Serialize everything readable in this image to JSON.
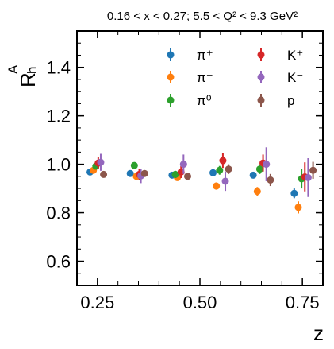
{
  "chart_data": {
    "type": "scatter",
    "title": "0.16 < x < 0.27;  5.5 < Q² < 9.3 GeV²",
    "xlabel": "z",
    "ylabel_main": "R",
    "ylabel_sup": "A",
    "ylabel_sub": "h",
    "xlim": [
      0.2,
      0.8
    ],
    "ylim": [
      0.5,
      1.55
    ],
    "xticks": [
      0.25,
      0.5,
      0.75
    ],
    "xtick_labels": [
      "0.25",
      "0.50",
      "0.75"
    ],
    "yticks": [
      0.6,
      0.8,
      1.0,
      1.2,
      1.4
    ],
    "ytick_labels": [
      "0.6",
      "0.8",
      "1.0",
      "1.2",
      "1.4"
    ],
    "grid": false,
    "legend_position": "top-right",
    "series": [
      {
        "name": "π⁺",
        "color": "#1f77b4",
        "points": [
          {
            "x": 0.232,
            "y": 0.968,
            "err": 0.01
          },
          {
            "x": 0.33,
            "y": 0.962,
            "err": 0.01
          },
          {
            "x": 0.432,
            "y": 0.955,
            "err": 0.01
          },
          {
            "x": 0.532,
            "y": 0.965,
            "err": 0.012
          },
          {
            "x": 0.63,
            "y": 0.955,
            "err": 0.012
          },
          {
            "x": 0.73,
            "y": 0.88,
            "err": 0.02
          }
        ]
      },
      {
        "name": "π⁻",
        "color": "#ff7f0e",
        "points": [
          {
            "x": 0.24,
            "y": 0.975,
            "err": 0.01
          },
          {
            "x": 0.345,
            "y": 0.95,
            "err": 0.01
          },
          {
            "x": 0.445,
            "y": 0.945,
            "err": 0.012
          },
          {
            "x": 0.54,
            "y": 0.91,
            "err": 0.015
          },
          {
            "x": 0.64,
            "y": 0.888,
            "err": 0.018
          },
          {
            "x": 0.74,
            "y": 0.822,
            "err": 0.025
          }
        ]
      },
      {
        "name": "π⁰",
        "color": "#2ca02c",
        "points": [
          {
            "x": 0.246,
            "y": 0.992,
            "err": 0.012
          },
          {
            "x": 0.34,
            "y": 0.995,
            "err": 0.012
          },
          {
            "x": 0.44,
            "y": 0.958,
            "err": 0.015
          },
          {
            "x": 0.548,
            "y": 0.975,
            "err": 0.018
          },
          {
            "x": 0.646,
            "y": 0.98,
            "err": 0.02
          },
          {
            "x": 0.748,
            "y": 0.94,
            "err": 0.04
          }
        ]
      },
      {
        "name": "K⁺",
        "color": "#d62728",
        "points": [
          {
            "x": 0.252,
            "y": 1.005,
            "err": 0.025
          },
          {
            "x": 0.352,
            "y": 0.958,
            "err": 0.022
          },
          {
            "x": 0.454,
            "y": 0.968,
            "err": 0.025
          },
          {
            "x": 0.556,
            "y": 1.015,
            "err": 0.03
          },
          {
            "x": 0.654,
            "y": 1.005,
            "err": 0.035
          },
          {
            "x": 0.756,
            "y": 0.948,
            "err": 0.06
          }
        ]
      },
      {
        "name": "K⁻",
        "color": "#9467bd",
        "points": [
          {
            "x": 0.258,
            "y": 1.008,
            "err": 0.035
          },
          {
            "x": 0.356,
            "y": 0.952,
            "err": 0.03
          },
          {
            "x": 0.46,
            "y": 1.0,
            "err": 0.04
          },
          {
            "x": 0.562,
            "y": 0.93,
            "err": 0.04
          },
          {
            "x": 0.662,
            "y": 1.0,
            "err": 0.07
          },
          {
            "x": 0.764,
            "y": 0.945,
            "err": 0.08
          }
        ]
      },
      {
        "name": "p",
        "color": "#8c564b",
        "points": [
          {
            "x": 0.265,
            "y": 0.958,
            "err": 0.01
          },
          {
            "x": 0.365,
            "y": 0.962,
            "err": 0.012
          },
          {
            "x": 0.47,
            "y": 0.95,
            "err": 0.015
          },
          {
            "x": 0.57,
            "y": 0.98,
            "err": 0.02
          },
          {
            "x": 0.672,
            "y": 0.935,
            "err": 0.025
          },
          {
            "x": 0.776,
            "y": 0.975,
            "err": 0.035
          }
        ]
      }
    ]
  }
}
